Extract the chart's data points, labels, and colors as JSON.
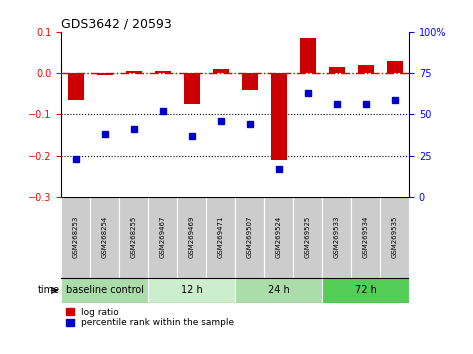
{
  "title": "GDS3642 / 20593",
  "samples": [
    "GSM268253",
    "GSM268254",
    "GSM268255",
    "GSM269467",
    "GSM269469",
    "GSM269471",
    "GSM269507",
    "GSM269524",
    "GSM269525",
    "GSM269533",
    "GSM269534",
    "GSM269535"
  ],
  "log_ratio": [
    -0.065,
    -0.005,
    0.005,
    0.005,
    -0.075,
    0.01,
    -0.04,
    -0.21,
    0.085,
    0.015,
    0.02,
    0.03
  ],
  "percentile_rank": [
    23,
    38,
    41,
    52,
    37,
    46,
    44,
    17,
    63,
    56,
    56,
    59
  ],
  "ylim_left": [
    -0.3,
    0.1
  ],
  "ylim_right": [
    0,
    100
  ],
  "yticks_left": [
    0.1,
    0,
    -0.1,
    -0.2,
    -0.3
  ],
  "yticks_right": [
    100,
    75,
    50,
    25,
    0
  ],
  "bar_color": "#cc0000",
  "dot_color": "#0000cc",
  "groups": [
    {
      "label": "baseline control",
      "start": 0,
      "end": 3,
      "color": "#aaddaa"
    },
    {
      "label": "12 h",
      "start": 3,
      "end": 6,
      "color": "#cceecc"
    },
    {
      "label": "24 h",
      "start": 6,
      "end": 9,
      "color": "#aaddaa"
    },
    {
      "label": "72 h",
      "start": 9,
      "end": 12,
      "color": "#55cc55"
    }
  ],
  "sample_box_color": "#cccccc",
  "time_label": "time",
  "legend_log_ratio": "log ratio",
  "legend_percentile": "percentile rank within the sample",
  "bg_color": "#ffffff"
}
